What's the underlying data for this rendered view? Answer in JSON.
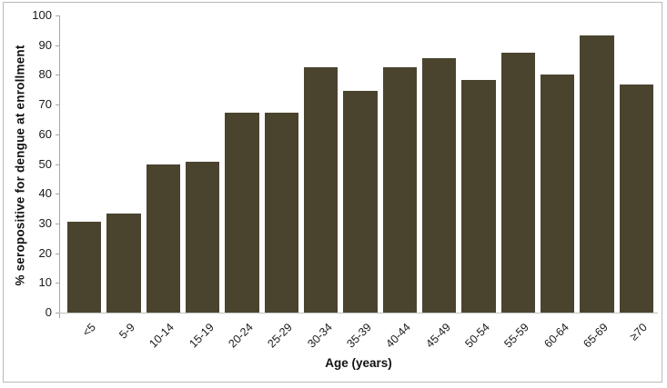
{
  "chart_data": {
    "type": "bar",
    "title": "",
    "xlabel": "Age (years)",
    "ylabel": "% seropositive for dengue at enrollment",
    "categories": [
      "<5",
      "5-9",
      "10-14",
      "15-19",
      "20-24",
      "25-29",
      "30-34",
      "35-39",
      "40-44",
      "45-49",
      "50-54",
      "55-59",
      "60-64",
      "65-69",
      "≥70"
    ],
    "values": [
      30.5,
      33.3,
      49.8,
      50.9,
      67.4,
      67.4,
      82.6,
      74.6,
      82.5,
      85.5,
      78.2,
      87.4,
      80.1,
      93.2,
      76.8
    ],
    "ylim": [
      0,
      100
    ],
    "ytick_step": 10,
    "ytick_labels": [
      "0",
      "10",
      "20",
      "30",
      "40",
      "50",
      "60",
      "70",
      "80",
      "90",
      "100"
    ],
    "grid": false,
    "legend_position": "none",
    "bar_color": "#4a442f",
    "axis_line_color": "#a6a6a6",
    "frame_border_color": "#b9b9b9",
    "text_color": "#111111",
    "background_color": "#ffffff"
  }
}
